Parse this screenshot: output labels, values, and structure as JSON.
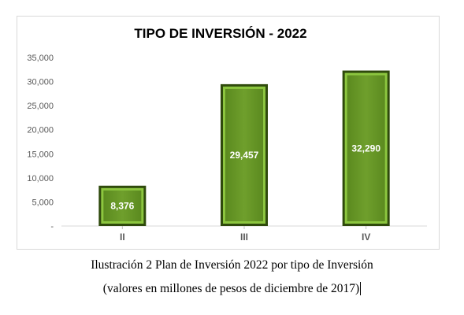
{
  "chart_data": {
    "type": "bar",
    "title": "TIPO DE INVERSIÓN - 2022",
    "categories": [
      "II",
      "III",
      "IV"
    ],
    "values": [
      8376,
      29457,
      32290
    ],
    "data_labels": [
      "8,376",
      "29,457",
      "32,290"
    ],
    "ylim": [
      0,
      35000
    ],
    "yticks": [
      0,
      5000,
      10000,
      15000,
      20000,
      25000,
      30000,
      35000
    ],
    "ytick_labels": [
      "-",
      "5,000",
      "10,000",
      "15,000",
      "20,000",
      "25,000",
      "30,000",
      "35,000"
    ],
    "xlabel": "",
    "ylabel": "",
    "grid": false,
    "legend": "none",
    "bar_color": "#6a9a2a",
    "bar_border_color": "#2f4a0c"
  },
  "caption": {
    "line1": "Ilustración 2 Plan de Inversión 2022 por tipo de Inversión",
    "line2": "(valores en millones de pesos de diciembre de 2017)"
  }
}
